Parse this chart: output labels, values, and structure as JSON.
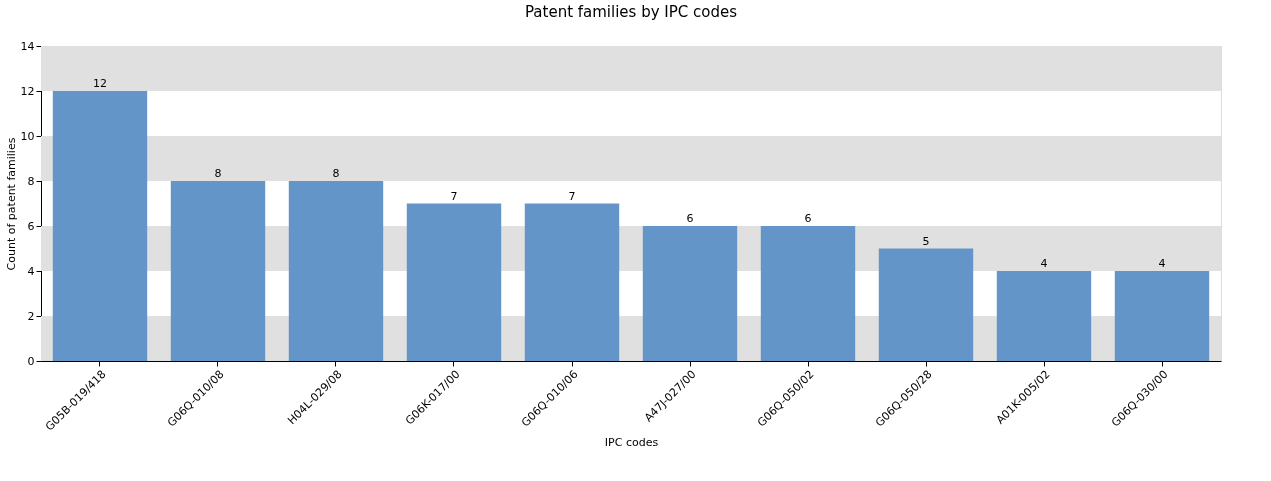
{
  "chart_data": {
    "type": "bar",
    "title": "Patent families by IPC codes",
    "xlabel": "IPC codes",
    "ylabel": "Count of patent families",
    "categories": [
      "G05B-019/418",
      "G06Q-010/08",
      "H04L-029/08",
      "G06K-017/00",
      "G06Q-010/06",
      "A47J-027/00",
      "G06Q-050/02",
      "G06Q-050/28",
      "A01K-005/02",
      "G06Q-030/00"
    ],
    "values": [
      12,
      8,
      8,
      7,
      7,
      6,
      6,
      5,
      4,
      4
    ],
    "color": "#6495c8",
    "ylim": [
      0,
      14
    ],
    "yticks": [
      0,
      2,
      4,
      6,
      8,
      10,
      12,
      14
    ],
    "grid": false,
    "data_labels": true,
    "bands": [
      {
        "axis": "y",
        "from": 0,
        "to": 2,
        "color": "#e0e0e0"
      },
      {
        "axis": "y",
        "from": 4,
        "to": 6,
        "color": "#e0e0e0"
      },
      {
        "axis": "y",
        "from": 8,
        "to": 10,
        "color": "#e0e0e0"
      },
      {
        "axis": "y",
        "from": 12,
        "to": 14,
        "color": "#e0e0e0"
      }
    ]
  }
}
